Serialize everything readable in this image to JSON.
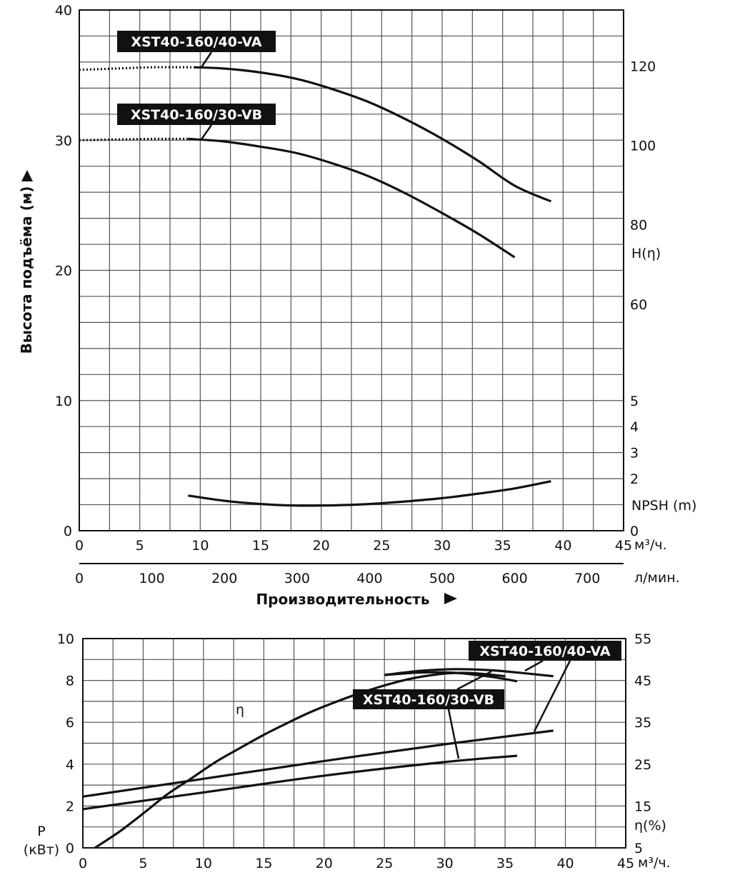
{
  "chart_data": [
    {
      "type": "line",
      "ylabel": "Высота подъёма (м)",
      "xlabel": "Производительность",
      "x_unit_m3h": "м³/ч.",
      "x_unit_lmin": "л/мин.",
      "xlim_m3h": [
        0,
        45
      ],
      "ylim": [
        0,
        40
      ],
      "grid": true,
      "x_ticks_m3h": [
        "0",
        "5",
        "10",
        "15",
        "20",
        "25",
        "30",
        "35",
        "40",
        "45"
      ],
      "x_ticks_lmin": [
        "0",
        "100",
        "200",
        "300",
        "400",
        "500",
        "600",
        "700"
      ],
      "y_ticks": [
        "0",
        "10",
        "20",
        "30",
        "40"
      ],
      "right_axis_h": {
        "label": "H(η)",
        "ticks": [
          {
            "label": "120",
            "at": 35.7
          },
          {
            "label": "100",
            "at": 29.6
          },
          {
            "label": "80",
            "at": 23.5
          },
          {
            "label": "60",
            "at": 17.4
          }
        ]
      },
      "right_axis_npsh": {
        "label": "NPSH (m)",
        "ticks": [
          {
            "label": "5",
            "at": 10
          },
          {
            "label": "4",
            "at": 8
          },
          {
            "label": "3",
            "at": 6
          },
          {
            "label": "2",
            "at": 4
          },
          {
            "label": "0",
            "at": 0
          }
        ]
      },
      "series": [
        {
          "name": "XST40-160/40-VA",
          "x": [
            9.5,
            12,
            15,
            18,
            21,
            24,
            27,
            30,
            33,
            36,
            39
          ],
          "y": [
            35.6,
            35.5,
            35.2,
            34.7,
            33.9,
            32.9,
            31.6,
            30.1,
            28.4,
            26.5,
            25.3
          ],
          "extrapolated": {
            "x": [
              0,
              3,
              6,
              9.5
            ],
            "y": [
              35.4,
              35.5,
              35.6,
              35.6
            ]
          },
          "label_anchor": {
            "x": 10,
            "y": 35.6
          }
        },
        {
          "name": "XST40-160/30-VB",
          "x": [
            9,
            12,
            15,
            18,
            21,
            24,
            27,
            30,
            33,
            36
          ],
          "y": [
            30.1,
            29.9,
            29.5,
            29.0,
            28.2,
            27.2,
            25.9,
            24.4,
            22.8,
            21.0
          ],
          "extrapolated": {
            "x": [
              0,
              3,
              6,
              9
            ],
            "y": [
              30.0,
              30.05,
              30.1,
              30.1
            ]
          },
          "label_anchor": {
            "x": 10,
            "y": 30.1
          }
        },
        {
          "name": "NPSH",
          "x": [
            9,
            12,
            15,
            18,
            21,
            24,
            27,
            30,
            33,
            36,
            39
          ],
          "y": [
            2.7,
            2.3,
            2.05,
            1.93,
            1.95,
            2.05,
            2.25,
            2.5,
            2.85,
            3.25,
            3.8
          ]
        }
      ]
    },
    {
      "type": "line",
      "xlabel_unit": "м³/ч.",
      "ylabel": "P\n(кВт)",
      "ylabel_line1": "P",
      "ylabel_line2": "(кВт)",
      "right_label": "η(%)",
      "xlim": [
        0,
        45
      ],
      "ylim": [
        0,
        10
      ],
      "y2lim": [
        5,
        55
      ],
      "grid": true,
      "x_ticks": [
        "0",
        "5",
        "10",
        "15",
        "20",
        "25",
        "30",
        "35",
        "40",
        "45"
      ],
      "y_ticks": [
        "0",
        "2",
        "4",
        "6",
        "8",
        "10"
      ],
      "y2_ticks": [
        "5",
        "15",
        "25",
        "35",
        "45",
        "55"
      ],
      "eta_label": "η",
      "series": [
        {
          "name": "η",
          "axis": "right",
          "x": [
            1,
            3,
            5,
            7,
            9,
            11,
            13,
            15,
            17,
            19,
            21,
            23,
            25,
            27,
            29,
            31,
            33,
            35
          ],
          "y": [
            5.0,
            8.8,
            13.2,
            17.8,
            21.6,
            25.5,
            28.8,
            32.0,
            34.9,
            37.6,
            39.9,
            42.0,
            43.8,
            45.3,
            46.3,
            46.8,
            46.6,
            46.0
          ]
        },
        {
          "name": "η XST40-160/40-VA",
          "axis": "right",
          "x": [
            25,
            28,
            31,
            34,
            37,
            39
          ],
          "y": [
            46.3,
            47.3,
            47.7,
            47.4,
            46.6,
            46.0
          ]
        },
        {
          "name": "η XST40-160/30-VB",
          "axis": "right",
          "x": [
            25,
            28,
            31,
            34,
            36
          ],
          "y": [
            46.3,
            46.9,
            46.8,
            45.8,
            44.8
          ]
        },
        {
          "name": "P XST40-160/40-VA",
          "axis": "left",
          "x": [
            0,
            10,
            20,
            30,
            39
          ],
          "y": [
            2.45,
            3.3,
            4.15,
            4.95,
            5.6
          ]
        },
        {
          "name": "P XST40-160/30-VB",
          "axis": "left",
          "x": [
            0,
            10,
            20,
            30,
            36
          ],
          "y": [
            1.85,
            2.65,
            3.45,
            4.1,
            4.4
          ]
        }
      ],
      "labels": {
        "va": "XST40-160/40-VA",
        "vb": "XST40-160/30-VB"
      }
    }
  ]
}
